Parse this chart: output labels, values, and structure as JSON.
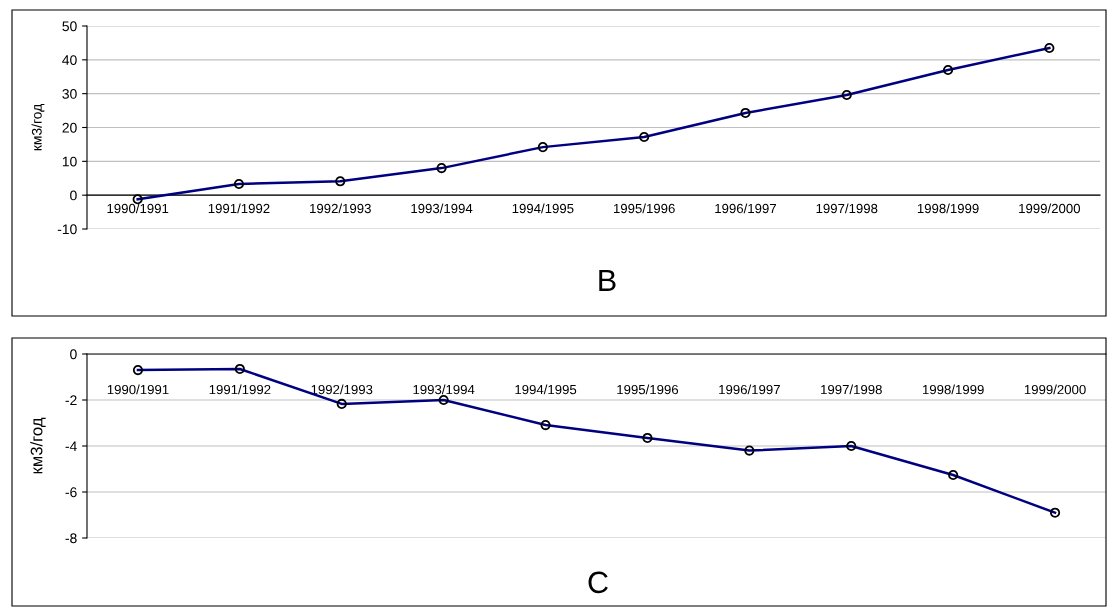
{
  "chart_data": [
    {
      "type": "line",
      "ylabel": "км3/год",
      "annotations": [
        "B"
      ],
      "categories": [
        "1990/1991",
        "1991/1992",
        "1992/1993",
        "1993/1994",
        "1994/1995",
        "1995/1996",
        "1996/1997",
        "1997/1998",
        "1998/1999",
        "1999/2000"
      ],
      "series": [
        {
          "color": "#000080",
          "values": [
            -1.2,
            3.3,
            4.1,
            8,
            14.2,
            17.2,
            24.3,
            29.6,
            37,
            43.5
          ]
        }
      ],
      "ylim": [
        -10,
        50
      ],
      "yticks": [
        -10,
        0,
        10,
        20,
        30,
        40,
        50
      ],
      "grid": "y",
      "marker": "circle",
      "line_style": "solid",
      "legend": false
    },
    {
      "type": "line",
      "ylabel": "км3/год",
      "annotations": [
        "C"
      ],
      "categories": [
        "1990/1991",
        "1991/1992",
        "1992/1993",
        "1993/1994",
        "1994/1995",
        "1995/1996",
        "1996/1997",
        "1997/1998",
        "1998/1999",
        "1999/2000"
      ],
      "series": [
        {
          "color": "#000080",
          "values": [
            -0.7,
            -0.65,
            -2.17,
            -2.0,
            -3.09,
            -3.65,
            -4.2,
            -4.0,
            -5.26,
            -6.9
          ]
        }
      ],
      "ylim": [
        -8,
        0
      ],
      "yticks": [
        -8,
        -6,
        -4,
        -2,
        0
      ],
      "grid": "y",
      "marker": "circle",
      "line_style": "solid",
      "legend": false
    }
  ]
}
